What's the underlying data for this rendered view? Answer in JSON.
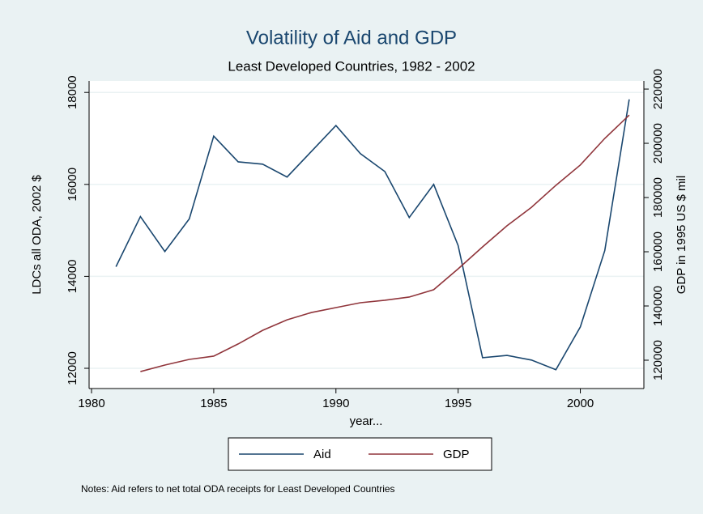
{
  "chart_data": {
    "type": "line",
    "title": "Volatility of Aid and GDP",
    "subtitle": "Least Developed Countries, 1982 - 2002",
    "x_label": "year...",
    "y_label": "LDCs all ODA, 2002 $",
    "y2_label": "GDP in 1995 US $ mil",
    "notes": "Notes: Aid refers to net total ODA receipts for Least Developed Countries",
    "x": [
      1981,
      1982,
      1983,
      1984,
      1985,
      1986,
      1987,
      1988,
      1989,
      1990,
      1991,
      1992,
      1993,
      1994,
      1995,
      1996,
      1997,
      1998,
      1999,
      2000,
      2001,
      2002
    ],
    "series": [
      {
        "name": "Aid",
        "color": "#1a476f",
        "values": [
          14210,
          15300,
          14540,
          15250,
          17050,
          16490,
          16440,
          16160,
          16720,
          17280,
          16670,
          16280,
          15280,
          16000,
          14670,
          12230,
          12280,
          12180,
          11970,
          12900,
          14560,
          17850
        ]
      },
      {
        "name": "GDP",
        "color": "#90353b",
        "axis": "y2",
        "values": [
          null,
          115800,
          118200,
          120300,
          121500,
          126000,
          131000,
          134900,
          137600,
          139400,
          141200,
          142100,
          143300,
          146000,
          153700,
          161800,
          169600,
          176400,
          184500,
          192000,
          201800,
          210400
        ]
      }
    ],
    "xlim": [
      1979.9,
      2002.6
    ],
    "xticks": [
      1980,
      1985,
      1990,
      1995,
      2000
    ],
    "ylim": [
      11560,
      18250
    ],
    "yticks": [
      12000,
      14000,
      16000,
      18000
    ],
    "y2lim": [
      109550,
      223000
    ],
    "y2ticks": [
      120000,
      140000,
      160000,
      180000,
      200000,
      220000
    ],
    "grid": true
  }
}
